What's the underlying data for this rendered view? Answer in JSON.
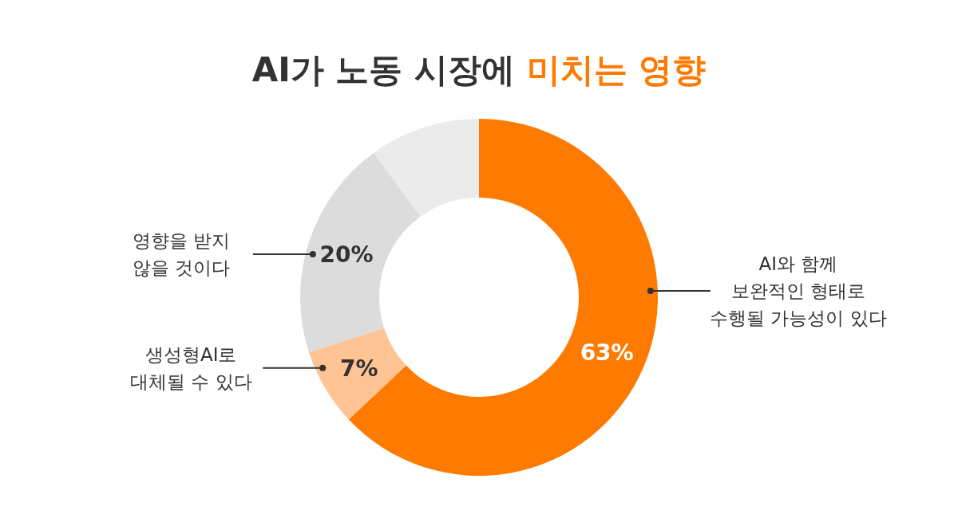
{
  "chart_data": {
    "type": "donut",
    "title": "AI가 노동 시장에 미치는 영향",
    "categories": [
      "AI와 함께\n보완적인 형태로\n수행될 가능성이 있다",
      "생성형AI로\n대체될 수 있다",
      "영향을 받지\n않을 것이다",
      null
    ],
    "values": [
      63,
      7,
      20,
      10
    ],
    "colors": [
      "#ff7a00",
      "#ffc394",
      "#dcdcdc",
      "#ebebeb"
    ],
    "value_labels": [
      "63%",
      "7%",
      "20%",
      null
    ]
  }
}
